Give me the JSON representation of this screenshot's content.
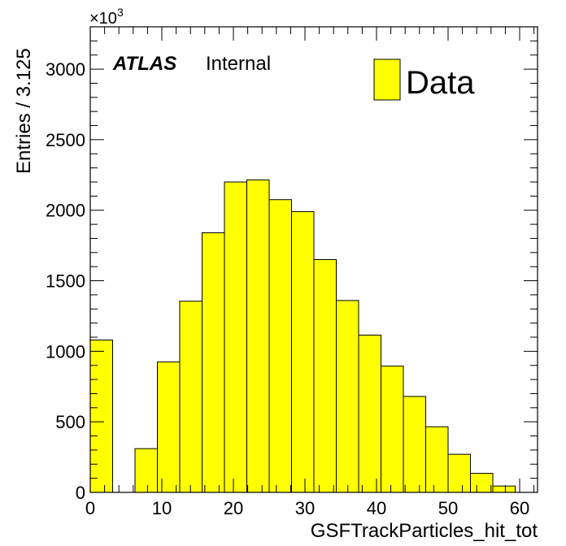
{
  "chart_data": {
    "type": "bar",
    "title": "",
    "xlabel": "GSFTrackParticles_hit_tot",
    "ylabel": "Entries / 3.125",
    "y_multiplier_label": "×10",
    "y_multiplier_exponent": "3",
    "xlim": [
      0,
      62.5
    ],
    "ylim": [
      0,
      3300
    ],
    "bin_width": 3.125,
    "x_ticks": [
      0,
      10,
      20,
      30,
      40,
      50,
      60
    ],
    "x_tick_labels": [
      "0",
      "10",
      "20",
      "30",
      "40",
      "50",
      "60"
    ],
    "y_ticks": [
      0,
      500,
      1000,
      1500,
      2000,
      2500,
      3000
    ],
    "y_tick_labels": [
      "0",
      "500",
      "1000",
      "1500",
      "2000",
      "2500",
      "3000"
    ],
    "bin_edges_low": [
      0,
      3.125,
      6.25,
      9.375,
      12.5,
      15.625,
      18.75,
      21.875,
      25,
      28.125,
      31.25,
      34.375,
      37.5,
      40.625,
      43.75,
      46.875,
      50,
      53.125,
      56.25,
      59.375
    ],
    "series": [
      {
        "name": "Data",
        "color": "#ffff00",
        "values": [
          1080,
          0,
          310,
          925,
          1355,
          1840,
          2200,
          2215,
          2075,
          1990,
          1650,
          1360,
          1115,
          895,
          680,
          465,
          270,
          135,
          45,
          0
        ]
      }
    ],
    "legend": {
      "position": "top-right",
      "entries": [
        "Data"
      ]
    },
    "annotations": {
      "experiment": "ATLAS",
      "status": "Internal"
    },
    "grid": false
  }
}
